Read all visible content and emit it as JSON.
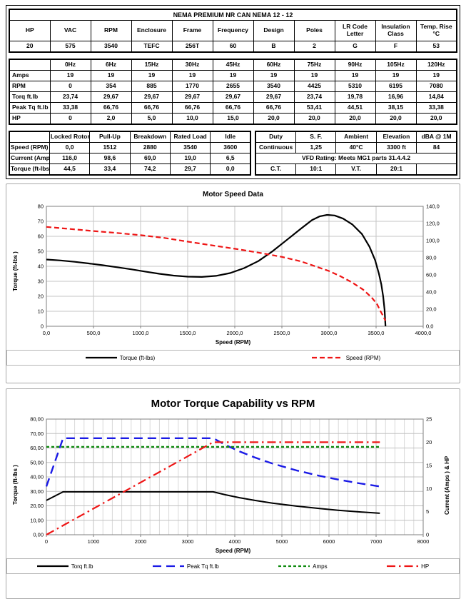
{
  "spec_table": {
    "title": "NEMA PREMIUM NR CAN NEMA 12 - 12",
    "headers": [
      "HP",
      "VAC",
      "RPM",
      "Enclosure",
      "Frame",
      "Frequency",
      "Design",
      "Poles",
      "LR Code Letter",
      "Insulation Class",
      "Temp. Rise °C"
    ],
    "values": [
      "20",
      "575",
      "3540",
      "TEFC",
      "256T",
      "60",
      "B",
      "2",
      "G",
      "F",
      "53"
    ]
  },
  "freq_table": {
    "col_headers": [
      "",
      "0Hz",
      "6Hz",
      "15Hz",
      "30Hz",
      "45Hz",
      "60Hz",
      "75Hz",
      "90Hz",
      "105Hz",
      "120Hz"
    ],
    "rows": [
      {
        "label": "Amps",
        "values": [
          "19",
          "19",
          "19",
          "19",
          "19",
          "19",
          "19",
          "19",
          "19",
          "19"
        ]
      },
      {
        "label": "RPM",
        "values": [
          "0",
          "354",
          "885",
          "1770",
          "2655",
          "3540",
          "4425",
          "5310",
          "6195",
          "7080"
        ]
      },
      {
        "label": "Torq ft.lb",
        "values": [
          "23,74",
          "29,67",
          "29,67",
          "29,67",
          "29,67",
          "29,67",
          "23,74",
          "19,78",
          "16,96",
          "14,84"
        ]
      },
      {
        "label": "Peak Tq ft.lb",
        "values": [
          "33,38",
          "66,76",
          "66,76",
          "66,76",
          "66,76",
          "66,76",
          "53,41",
          "44,51",
          "38,15",
          "33,38"
        ]
      },
      {
        "label": "HP",
        "values": [
          "0",
          "2,0",
          "5,0",
          "10,0",
          "15,0",
          "20,0",
          "20,0",
          "20,0",
          "20,0",
          "20,0"
        ]
      }
    ]
  },
  "perf_table": {
    "col_headers": [
      "",
      "Locked Rotor",
      "Pull-Up",
      "Breakdown",
      "Rated Load",
      "Idle"
    ],
    "rows": [
      {
        "label": "Speed (RPM)",
        "values": [
          "0,0",
          "1512",
          "2880",
          "3540",
          "3600"
        ]
      },
      {
        "label": "Current (Amps)",
        "values": [
          "116,0",
          "98,6",
          "69,0",
          "19,0",
          "6,5"
        ]
      },
      {
        "label": "Torque (ft-lbs)",
        "values": [
          "44,5",
          "33,4",
          "74,2",
          "29,7",
          "0,0"
        ]
      }
    ]
  },
  "rating_table": {
    "col_headers": [
      "Duty",
      "S. F.",
      "Ambient",
      "Elevation",
      "dBA @ 1M"
    ],
    "row1": [
      "Continuous",
      "1,25",
      "40°C",
      "3300 ft",
      "84"
    ],
    "vfd_note": "VFD Rating: Meets MG1 parts 31.4.4.2",
    "row3": [
      "C.T.",
      "10:1",
      "V.T.",
      "20:1",
      ""
    ]
  },
  "chart_data": [
    {
      "type": "line",
      "title": "Motor Speed Data",
      "xlabel": "Speed (RPM)",
      "ylabel_left": "Torque (ft-lbs )",
      "xlim": [
        0,
        4000
      ],
      "ylim_left": [
        0,
        80
      ],
      "ylim_right": [
        0,
        140
      ],
      "xticks": [
        0,
        500,
        1000,
        1500,
        2000,
        2500,
        3000,
        3500,
        4000
      ],
      "xtick_labels": [
        "0,0",
        "500,0",
        "1000,0",
        "1500,0",
        "2000,0",
        "2500,0",
        "3000,0",
        "3500,0",
        "4000,0"
      ],
      "yticks_left": [
        0,
        10,
        20,
        30,
        40,
        50,
        60,
        70,
        80
      ],
      "ytick_left_labels": [
        "0",
        "10",
        "20",
        "30",
        "40",
        "50",
        "60",
        "70",
        "80"
      ],
      "yticks_right": [
        0,
        20,
        40,
        60,
        80,
        100,
        120,
        140
      ],
      "ytick_right_labels": [
        "0,0",
        "20,0",
        "40,0",
        "60,0",
        "80,0",
        "100,0",
        "120,0",
        "140,0"
      ],
      "grid": {
        "major_color": "#c6c6c6",
        "minor_color": "#dedede",
        "border_color": "#7f7f7f",
        "x_major_step": 500,
        "x_minor_step": 0
      },
      "legend": [
        {
          "label": "Torque (ft-lbs)",
          "color": "#000000",
          "dash": ""
        },
        {
          "label": "Speed (RPM)",
          "color": "#ee1515",
          "dash": "7,4"
        }
      ],
      "series": [
        {
          "name": "Torque (ft-lbs)",
          "axis": "left",
          "color": "#000000",
          "width": 2.2,
          "dash": "",
          "points": [
            [
              0,
              44.5
            ],
            [
              150,
              43.9
            ],
            [
              300,
              43.0
            ],
            [
              450,
              41.9
            ],
            [
              600,
              40.7
            ],
            [
              750,
              39.4
            ],
            [
              900,
              38.0
            ],
            [
              1050,
              36.5
            ],
            [
              1200,
              35.0
            ],
            [
              1350,
              33.8
            ],
            [
              1500,
              33.1
            ],
            [
              1650,
              32.9
            ],
            [
              1800,
              33.6
            ],
            [
              1950,
              35.5
            ],
            [
              2100,
              38.8
            ],
            [
              2250,
              43.5
            ],
            [
              2400,
              50.0
            ],
            [
              2550,
              57.5
            ],
            [
              2700,
              65.0
            ],
            [
              2820,
              70.8
            ],
            [
              2900,
              73.3
            ],
            [
              2980,
              74.3
            ],
            [
              3060,
              73.9
            ],
            [
              3150,
              71.8
            ],
            [
              3250,
              67.8
            ],
            [
              3350,
              61.5
            ],
            [
              3430,
              53.0
            ],
            [
              3490,
              44.0
            ],
            [
              3530,
              35.0
            ],
            [
              3555,
              28.0
            ],
            [
              3575,
              20.0
            ],
            [
              3590,
              11.0
            ],
            [
              3600,
              0.0
            ]
          ]
        },
        {
          "name": "Speed (RPM)",
          "axis": "right",
          "color": "#ee1515",
          "width": 2.2,
          "dash": "7,4",
          "points": [
            [
              0,
              116.0
            ],
            [
              250,
              113.6
            ],
            [
              500,
              111.2
            ],
            [
              750,
              108.9
            ],
            [
              1000,
              106.3
            ],
            [
              1250,
              103.2
            ],
            [
              1512,
              98.6
            ],
            [
              1750,
              94.6
            ],
            [
              2000,
              90.5
            ],
            [
              2250,
              86.0
            ],
            [
              2500,
              81.0
            ],
            [
              2700,
              75.8
            ],
            [
              2880,
              69.0
            ],
            [
              3000,
              64.5
            ],
            [
              3120,
              58.5
            ],
            [
              3240,
              51.5
            ],
            [
              3360,
              43.0
            ],
            [
              3450,
              34.0
            ],
            [
              3510,
              26.0
            ],
            [
              3540,
              19.0
            ],
            [
              3570,
              13.0
            ],
            [
              3590,
              8.5
            ],
            [
              3600,
              6.5
            ]
          ]
        }
      ]
    },
    {
      "type": "line",
      "title": "Motor Torque Capability vs RPM",
      "xlabel": "Speed (RPM)",
      "ylabel_left": "Torque (ft-lbs )",
      "ylabel_right": "Current (Amps ) & HP",
      "xlim": [
        0,
        8000
      ],
      "ylim_left": [
        0,
        80
      ],
      "ylim_right": [
        0,
        25
      ],
      "xticks": [
        0,
        1000,
        2000,
        3000,
        4000,
        5000,
        6000,
        7000,
        8000
      ],
      "xtick_labels": [
        "0",
        "1000",
        "2000",
        "3000",
        "4000",
        "5000",
        "6000",
        "7000",
        "8000"
      ],
      "yticks_left": [
        0,
        10,
        20,
        30,
        40,
        50,
        60,
        70,
        80
      ],
      "ytick_left_labels": [
        "0,00",
        "10,00",
        "20,00",
        "30,00",
        "40,00",
        "50,00",
        "60,00",
        "70,00",
        "80,00"
      ],
      "yticks_right": [
        0,
        5,
        10,
        15,
        20,
        25
      ],
      "ytick_right_labels": [
        "0",
        "5",
        "10",
        "15",
        "20",
        "25"
      ],
      "grid": {
        "major_color": "#c0c0c0",
        "minor_color": "#d9d9d9",
        "border_color": "#7f7f7f",
        "x_major_step": 1000,
        "x_minor_step": 200
      },
      "legend": [
        {
          "label": "Torq ft.lb",
          "color": "#000000",
          "dash": ""
        },
        {
          "label": "Peak Tq ft.lb",
          "color": "#1a1ae6",
          "dash": "12,7"
        },
        {
          "label": "Amps",
          "color": "#0e8a0e",
          "dash": "4,3"
        },
        {
          "label": "HP",
          "color": "#ee1515",
          "dash": "12,5,2.5,5"
        }
      ],
      "series": [
        {
          "name": "Torq ft.lb",
          "axis": "left",
          "color": "#000000",
          "width": 2,
          "dash": "",
          "points": [
            [
              0,
              23.74
            ],
            [
              354,
              29.67
            ],
            [
              885,
              29.67
            ],
            [
              1770,
              29.67
            ],
            [
              2655,
              29.67
            ],
            [
              3540,
              29.67
            ],
            [
              3800,
              27.64
            ],
            [
              4100,
              25.62
            ],
            [
              4425,
              23.74
            ],
            [
              4800,
              21.88
            ],
            [
              5310,
              19.78
            ],
            [
              5800,
              18.11
            ],
            [
              6195,
              16.96
            ],
            [
              6600,
              15.91
            ],
            [
              7080,
              14.84
            ]
          ]
        },
        {
          "name": "Peak Tq ft.lb",
          "axis": "left",
          "color": "#1a1ae6",
          "width": 2.4,
          "dash": "12,7",
          "points": [
            [
              0,
              33.38
            ],
            [
              354,
              66.76
            ],
            [
              885,
              66.76
            ],
            [
              1770,
              66.76
            ],
            [
              2655,
              66.76
            ],
            [
              3540,
              66.76
            ],
            [
              3800,
              62.19
            ],
            [
              4100,
              57.64
            ],
            [
              4425,
              53.41
            ],
            [
              4800,
              49.24
            ],
            [
              5310,
              44.51
            ],
            [
              5800,
              40.74
            ],
            [
              6195,
              38.15
            ],
            [
              6600,
              35.81
            ],
            [
              7080,
              33.38
            ]
          ]
        },
        {
          "name": "Amps",
          "axis": "right",
          "color": "#0e8a0e",
          "width": 2.2,
          "dash": "4,3",
          "points": [
            [
              0,
              19
            ],
            [
              7080,
              19
            ]
          ]
        },
        {
          "name": "HP",
          "axis": "right",
          "color": "#ee1515",
          "width": 2.2,
          "dash": "12,5,2.5,5",
          "points": [
            [
              0,
              0
            ],
            [
              354,
              2.0
            ],
            [
              885,
              5.0
            ],
            [
              1770,
              10.0
            ],
            [
              2655,
              15.0
            ],
            [
              3540,
              20.0
            ],
            [
              4425,
              20.0
            ],
            [
              5310,
              20.0
            ],
            [
              6195,
              20.0
            ],
            [
              7080,
              20.0
            ]
          ]
        }
      ]
    }
  ]
}
